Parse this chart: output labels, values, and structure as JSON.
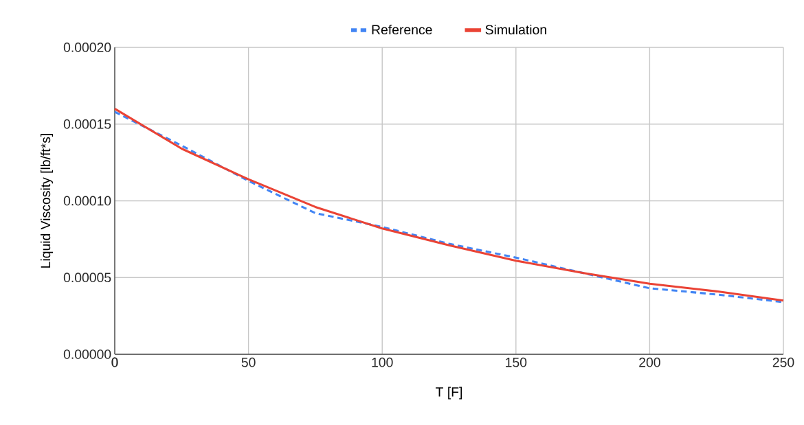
{
  "chart_data": {
    "type": "line",
    "xlabel": "T [F]",
    "ylabel": "Liquid Viscosity [lb/ft*s]",
    "x": [
      0,
      25,
      50,
      75,
      100,
      125,
      150,
      175,
      200,
      225,
      250
    ],
    "series": [
      {
        "name": "Reference",
        "color": "#4285f4",
        "line_style": "dashed",
        "values": [
          0.000158,
          0.000136,
          0.000113,
          9.2e-05,
          8.3e-05,
          7.2e-05,
          6.3e-05,
          5.3e-05,
          4.3e-05,
          3.9e-05,
          3.4e-05
        ]
      },
      {
        "name": "Simulation",
        "color": "#ea4335",
        "line_style": "solid",
        "values": [
          0.00016,
          0.000134,
          0.000114,
          9.6e-05,
          8.2e-05,
          7.1e-05,
          6.1e-05,
          5.3e-05,
          4.6e-05,
          4.1e-05,
          3.5e-05
        ]
      }
    ],
    "xlim": [
      0,
      250
    ],
    "ylim": [
      0,
      0.0002
    ],
    "xticks": [
      0,
      50,
      100,
      150,
      200,
      250
    ],
    "yticks": [
      {
        "value": 0,
        "label": "0.00000"
      },
      {
        "value": 5e-05,
        "label": "0.00005"
      },
      {
        "value": 0.0001,
        "label": "0.00010"
      },
      {
        "value": 0.00015,
        "label": "0.00015"
      },
      {
        "value": 0.0002,
        "label": "0.00020"
      }
    ],
    "grid": true,
    "legend": "top",
    "marker": "none"
  }
}
